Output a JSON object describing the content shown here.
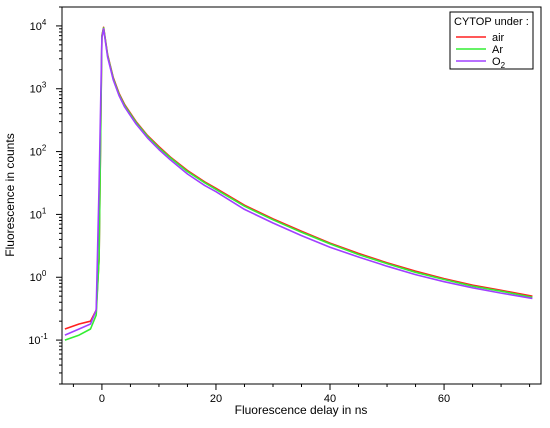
{
  "chart_data": {
    "type": "line",
    "title": "",
    "xlabel": "Fluorescence delay in ns",
    "ylabel": "Fluorescence in counts",
    "xlim": [
      -7,
      77
    ],
    "ylim": [
      0.02,
      20000
    ],
    "yscale": "log",
    "grid": false,
    "legend": {
      "title": "CYTOP under :",
      "placement": "top-right"
    },
    "x_ticks": [
      {
        "value": 0,
        "label": "0"
      },
      {
        "value": 20,
        "label": "20"
      },
      {
        "value": 40,
        "label": "40"
      },
      {
        "value": 60,
        "label": "60"
      }
    ],
    "y_ticks": [
      {
        "value": 0.1,
        "base": "10",
        "exp": "-1"
      },
      {
        "value": 1,
        "base": "10",
        "exp": "0"
      },
      {
        "value": 10,
        "base": "10",
        "exp": "1"
      },
      {
        "value": 100,
        "base": "10",
        "exp": "2"
      },
      {
        "value": 1000,
        "base": "10",
        "exp": "3"
      },
      {
        "value": 10000,
        "base": "10",
        "exp": "4"
      }
    ],
    "series": [
      {
        "name": "air",
        "color": "#ff2020",
        "x": [
          -6.5,
          -4,
          -2,
          -1,
          -0.5,
          0,
          0.3,
          1,
          2,
          3,
          4,
          6,
          8,
          10,
          12,
          15,
          18,
          20,
          25,
          30,
          35,
          40,
          45,
          50,
          55,
          60,
          65,
          70,
          75.5
        ],
        "y": [
          0.15,
          0.18,
          0.2,
          0.3,
          2,
          7000,
          9500,
          3500,
          1500,
          850,
          560,
          300,
          180,
          120,
          82,
          50,
          33,
          26,
          14,
          8.5,
          5.4,
          3.5,
          2.4,
          1.7,
          1.25,
          0.95,
          0.75,
          0.62,
          0.5
        ]
      },
      {
        "name": "Ar",
        "color": "#33ee33",
        "x": [
          -6.5,
          -4,
          -2,
          -1,
          -0.5,
          0,
          0.3,
          1,
          2,
          3,
          4,
          6,
          8,
          10,
          12,
          15,
          18,
          20,
          25,
          30,
          35,
          40,
          45,
          50,
          55,
          60,
          65,
          70,
          75.5
        ],
        "y": [
          0.1,
          0.12,
          0.15,
          0.25,
          2,
          6800,
          9300,
          3400,
          1450,
          820,
          540,
          290,
          175,
          115,
          80,
          48,
          32,
          25,
          13.5,
          8.2,
          5.2,
          3.4,
          2.3,
          1.65,
          1.2,
          0.92,
          0.72,
          0.6,
          0.48
        ]
      },
      {
        "name": "O₂",
        "color": "#a040ff",
        "x": [
          -6.5,
          -4,
          -2,
          -1,
          -0.5,
          0,
          0.3,
          1,
          2,
          3,
          4,
          6,
          8,
          10,
          12,
          15,
          18,
          20,
          25,
          30,
          35,
          40,
          45,
          50,
          55,
          60,
          65,
          70,
          75.5
        ],
        "y": [
          0.12,
          0.15,
          0.18,
          0.3,
          30,
          6500,
          9000,
          3200,
          1380,
          780,
          510,
          275,
          165,
          108,
          74,
          44,
          29,
          23,
          12,
          7.3,
          4.6,
          3.0,
          2.1,
          1.5,
          1.1,
          0.85,
          0.68,
          0.56,
          0.46
        ]
      }
    ]
  }
}
